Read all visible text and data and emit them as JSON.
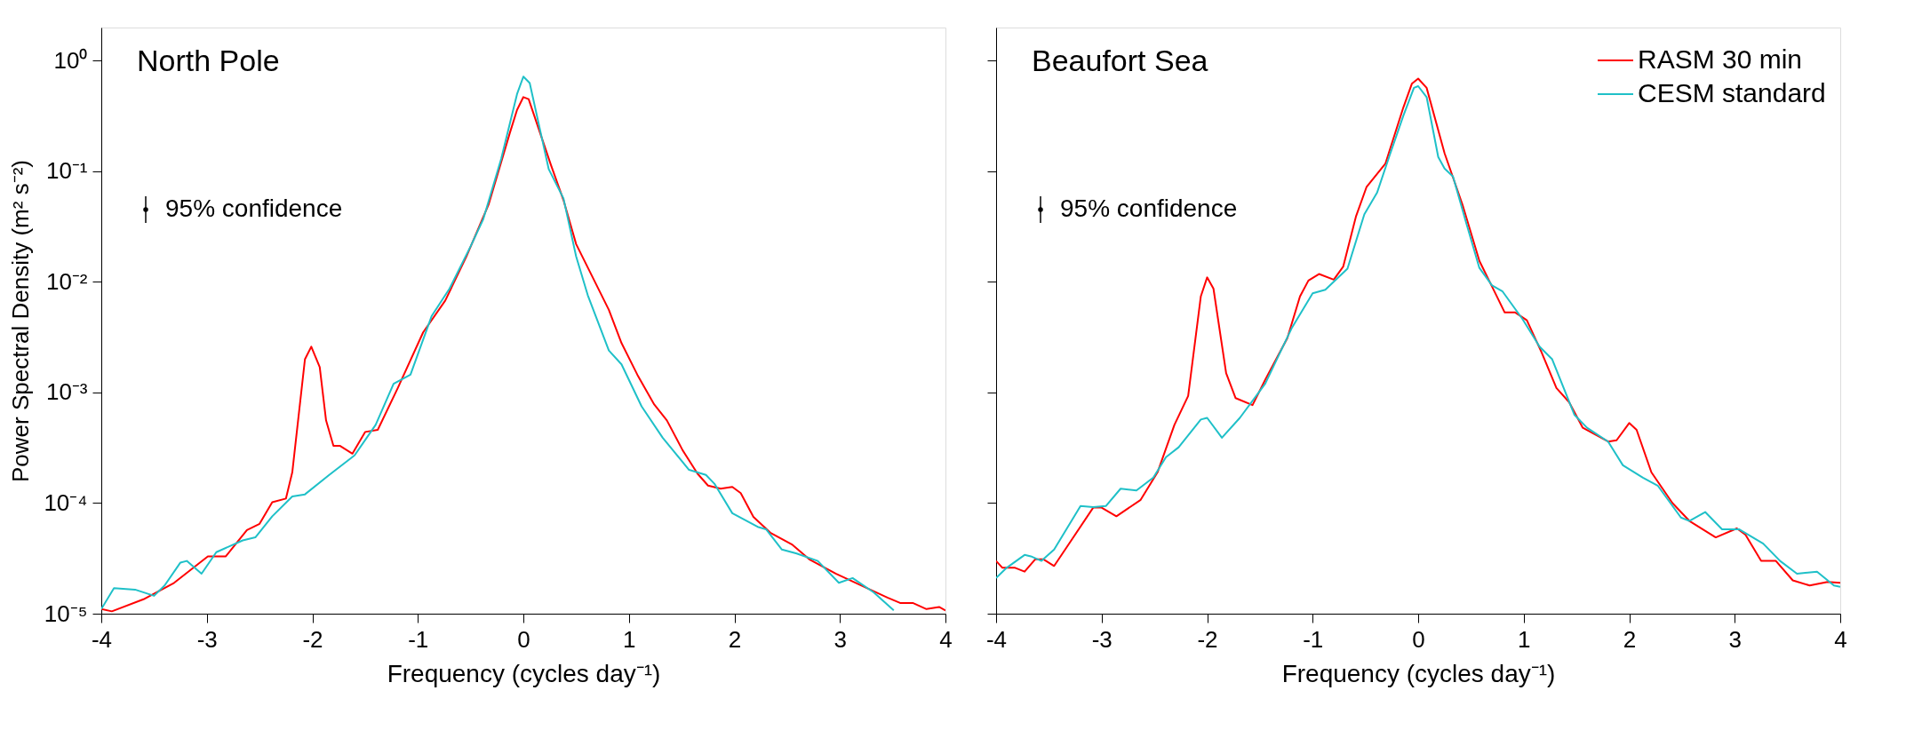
{
  "chart_data": [
    {
      "type": "line",
      "title": "North Pole",
      "xlabel": "Frequency (cycles day⁻¹)",
      "ylabel": "Power Spectral Density (m² s⁻²)",
      "log": "y",
      "grid": false,
      "legend": false,
      "line_style": "solid",
      "marker": "none",
      "xlim": [
        -4,
        4
      ],
      "xticks": [
        -4,
        -3,
        -2,
        -1,
        0,
        1,
        2,
        3,
        4
      ],
      "ylim": [
        1e-05,
        2
      ],
      "yticks": [
        {
          "value": 1e-05,
          "label": "10⁻⁵"
        },
        {
          "value": 0.0001,
          "label": "10⁻⁴"
        },
        {
          "value": 0.001,
          "label": "10⁻³"
        },
        {
          "value": 0.01,
          "label": "10⁻²"
        },
        {
          "value": 0.1,
          "label": "10⁻¹"
        },
        {
          "value": 1,
          "label": "10⁰"
        }
      ],
      "annotations": [
        "95% confidence"
      ],
      "series": [
        {
          "color": "#ff0000",
          "x": [
            -4,
            -3.9,
            -3.6,
            -3.31,
            -2.99,
            -2.82,
            -2.62,
            -2.5,
            -2.38,
            -2.25,
            -2.19,
            -2.07,
            -2.01,
            -1.93,
            -1.87,
            -1.8,
            -1.74,
            -1.62,
            -1.5,
            -1.38,
            -1.19,
            -0.95,
            -0.74,
            -0.54,
            -0.33,
            -0.13,
            -0.06,
            0,
            0.05,
            0.26,
            0.38,
            0.5,
            0.63,
            0.81,
            0.93,
            1.08,
            1.24,
            1.36,
            1.51,
            1.65,
            1.75,
            1.87,
            1.98,
            2.06,
            2.18,
            2.34,
            2.55,
            2.71,
            2.96,
            3.2,
            3.45,
            3.57,
            3.69,
            3.82,
            3.94,
            4
          ],
          "values": [
            1.1e-05,
            1.05e-05,
            1.35e-05,
            1.9e-05,
            3.3e-05,
            3.3e-05,
            5.7e-05,
            6.5e-05,
            0.000102,
            0.00011,
            0.00019,
            0.002,
            0.0026,
            0.0017,
            0.00056,
            0.00033,
            0.00033,
            0.00028,
            0.00044,
            0.00046,
            0.0011,
            0.0035,
            0.0068,
            0.017,
            0.05,
            0.22,
            0.36,
            0.47,
            0.45,
            0.115,
            0.055,
            0.022,
            0.0124,
            0.0056,
            0.0028,
            0.00145,
            0.00078,
            0.00056,
            0.0003,
            0.000185,
            0.000144,
            0.000135,
            0.00014,
            0.000123,
            7.5e-05,
            5.4e-05,
            4.2e-05,
            3.1e-05,
            2.3e-05,
            1.8e-05,
            1.4e-05,
            1.25e-05,
            1.25e-05,
            1.1e-05,
            1.15e-05,
            1.07e-05
          ]
        },
        {
          "color": "#1fc0c8",
          "x": [
            -4,
            -3.88,
            -3.68,
            -3.5,
            -3.4,
            -3.25,
            -3.19,
            -3.05,
            -2.91,
            -2.66,
            -2.54,
            -2.38,
            -2.19,
            -2.07,
            -1.84,
            -1.6,
            -1.4,
            -1.23,
            -1.07,
            -0.87,
            -0.7,
            -0.5,
            -0.38,
            -0.21,
            -0.06,
            0,
            0.06,
            0.24,
            0.38,
            0.5,
            0.61,
            0.81,
            0.93,
            1.12,
            1.32,
            1.57,
            1.73,
            1.81,
            1.98,
            2.22,
            2.3,
            2.45,
            2.59,
            2.79,
            2.99,
            3.12,
            3.32,
            3.51
          ],
          "values": [
            1.1e-05,
            1.7e-05,
            1.65e-05,
            1.45e-05,
            1.8e-05,
            2.9e-05,
            3e-05,
            2.3e-05,
            3.6e-05,
            4.6e-05,
            4.9e-05,
            7.6e-05,
            0.000115,
            0.00012,
            0.00018,
            0.00027,
            0.00051,
            0.0012,
            0.00145,
            0.0049,
            0.0087,
            0.021,
            0.037,
            0.13,
            0.5,
            0.72,
            0.63,
            0.105,
            0.057,
            0.017,
            0.0076,
            0.0024,
            0.0018,
            0.00075,
            0.00039,
            0.0002,
            0.00018,
            0.00015,
            8.1e-05,
            6.1e-05,
            5.8e-05,
            3.8e-05,
            3.5e-05,
            3e-05,
            1.9e-05,
            2.1e-05,
            1.56e-05,
            1.07e-05
          ]
        }
      ]
    },
    {
      "type": "line",
      "title": "Beaufort Sea",
      "xlabel": "Frequency (cycles day⁻¹)",
      "log": "y",
      "grid": false,
      "legend": "top right",
      "line_style": "solid",
      "marker": "none",
      "tick_labels": "x",
      "xlim": [
        -4,
        4
      ],
      "xticks": [
        -4,
        -3,
        -2,
        -1,
        0,
        1,
        2,
        3,
        4
      ],
      "ylim": [
        1e-05,
        2
      ],
      "yticks": [
        {
          "value": 1e-05,
          "label": null
        },
        {
          "value": 0.0001,
          "label": null
        },
        {
          "value": 0.001,
          "label": null
        },
        {
          "value": 0.01,
          "label": null
        },
        {
          "value": 0.1,
          "label": null
        },
        {
          "value": 1,
          "label": null
        }
      ],
      "annotations": [
        "95% confidence"
      ],
      "series": [
        {
          "name": "RASM 30 min",
          "color": "#ff0000",
          "x": [
            -4,
            -3.94,
            -3.82,
            -3.73,
            -3.63,
            -3.55,
            -3.45,
            -3.33,
            -3.08,
            -3.0,
            -2.86,
            -2.63,
            -2.47,
            -2.31,
            -2.18,
            -2.06,
            -2.0,
            -1.94,
            -1.82,
            -1.73,
            -1.57,
            -1.45,
            -1.24,
            -1.12,
            -1.04,
            -0.94,
            -0.8,
            -0.71,
            -0.59,
            -0.49,
            -0.31,
            -0.14,
            -0.06,
            0,
            0.08,
            0.25,
            0.42,
            0.58,
            0.74,
            0.82,
            0.92,
            1.03,
            1.17,
            1.31,
            1.43,
            1.56,
            1.8,
            1.88,
            2.0,
            2.07,
            2.21,
            2.41,
            2.57,
            2.82,
            3.02,
            3.1,
            3.25,
            3.39,
            3.55,
            3.71,
            3.88,
            4
          ],
          "values": [
            3e-05,
            2.6e-05,
            2.6e-05,
            2.4e-05,
            3.1e-05,
            3.1e-05,
            2.7e-05,
            4e-05,
            9.1e-05,
            9.1e-05,
            7.6e-05,
            0.000107,
            0.00019,
            0.00051,
            0.00093,
            0.0074,
            0.011,
            0.0087,
            0.0015,
            0.00089,
            0.00077,
            0.0013,
            0.0031,
            0.0074,
            0.0103,
            0.0118,
            0.0105,
            0.0138,
            0.039,
            0.072,
            0.118,
            0.38,
            0.62,
            0.69,
            0.57,
            0.146,
            0.05,
            0.0155,
            0.0076,
            0.0053,
            0.0053,
            0.0045,
            0.0023,
            0.0011,
            0.00082,
            0.00048,
            0.00036,
            0.00037,
            0.00053,
            0.00046,
            0.00019,
            0.0001,
            6.9e-05,
            4.9e-05,
            5.9e-05,
            5.2e-05,
            3e-05,
            3e-05,
            2e-05,
            1.8e-05,
            1.94e-05,
            1.9e-05
          ]
        },
        {
          "name": "CESM standard",
          "color": "#1fc0c8",
          "x": [
            -4,
            -3.9,
            -3.73,
            -3.67,
            -3.57,
            -3.45,
            -3.2,
            -3.08,
            -2.96,
            -2.82,
            -2.67,
            -2.51,
            -2.39,
            -2.27,
            -2.06,
            -2.0,
            -1.86,
            -1.69,
            -1.45,
            -1.2,
            -1.0,
            -0.88,
            -0.67,
            -0.51,
            -0.39,
            -0.27,
            -0.14,
            -0.04,
            0,
            0.08,
            0.19,
            0.25,
            0.33,
            0.46,
            0.58,
            0.7,
            0.8,
            0.99,
            1.15,
            1.27,
            1.48,
            1.6,
            1.8,
            1.94,
            2.13,
            2.27,
            2.49,
            2.57,
            2.72,
            2.88,
            3.04,
            3.27,
            3.43,
            3.59,
            3.78,
            3.94,
            4
          ],
          "values": [
            2.1e-05,
            2.6e-05,
            3.4e-05,
            3.3e-05,
            3e-05,
            3.8e-05,
            9.4e-05,
            9.2e-05,
            9.4e-05,
            0.000135,
            0.00013,
            0.00017,
            0.00026,
            0.00032,
            0.00057,
            0.00059,
            0.00039,
            0.00059,
            0.0012,
            0.0038,
            0.0079,
            0.0085,
            0.0132,
            0.041,
            0.064,
            0.14,
            0.32,
            0.57,
            0.59,
            0.47,
            0.135,
            0.106,
            0.09,
            0.033,
            0.0134,
            0.0093,
            0.0082,
            0.0046,
            0.0026,
            0.002,
            0.00063,
            0.00048,
            0.00036,
            0.00022,
            0.00017,
            0.000144,
            7.4e-05,
            6.9e-05,
            8.3e-05,
            5.8e-05,
            5.8e-05,
            4.3e-05,
            3e-05,
            2.3e-05,
            2.4e-05,
            1.8e-05,
            1.75e-05
          ]
        }
      ]
    }
  ]
}
